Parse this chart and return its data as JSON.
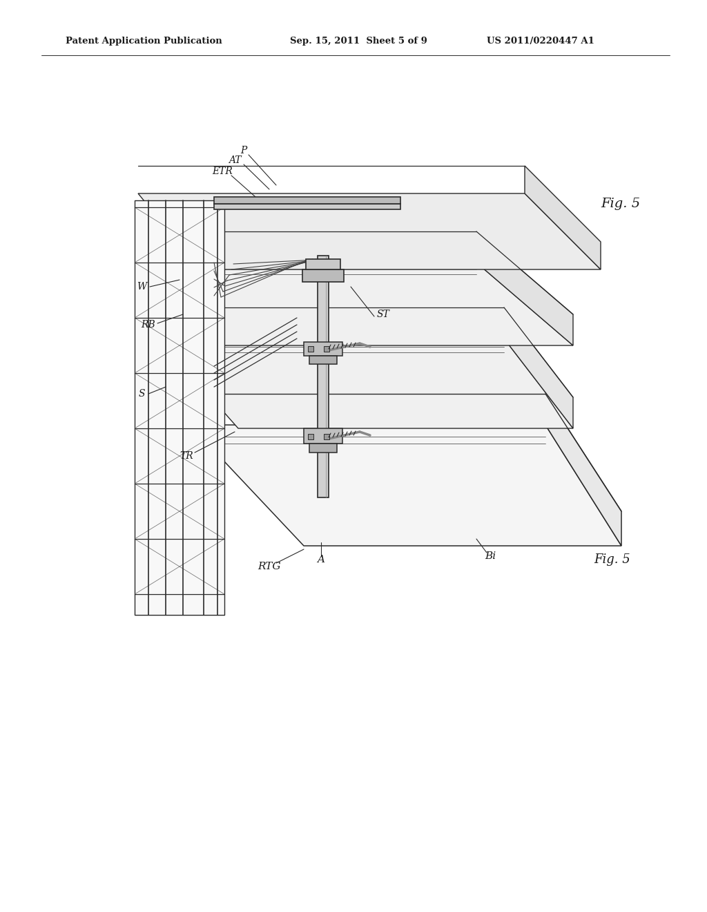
{
  "bg_color": "#ffffff",
  "line_color": "#2a2a2a",
  "header_left": "Patent Application Publication",
  "header_mid": "Sep. 15, 2011  Sheet 5 of 9",
  "header_right": "US 2011/0220447 A1",
  "fig_label": "Fig. 5"
}
